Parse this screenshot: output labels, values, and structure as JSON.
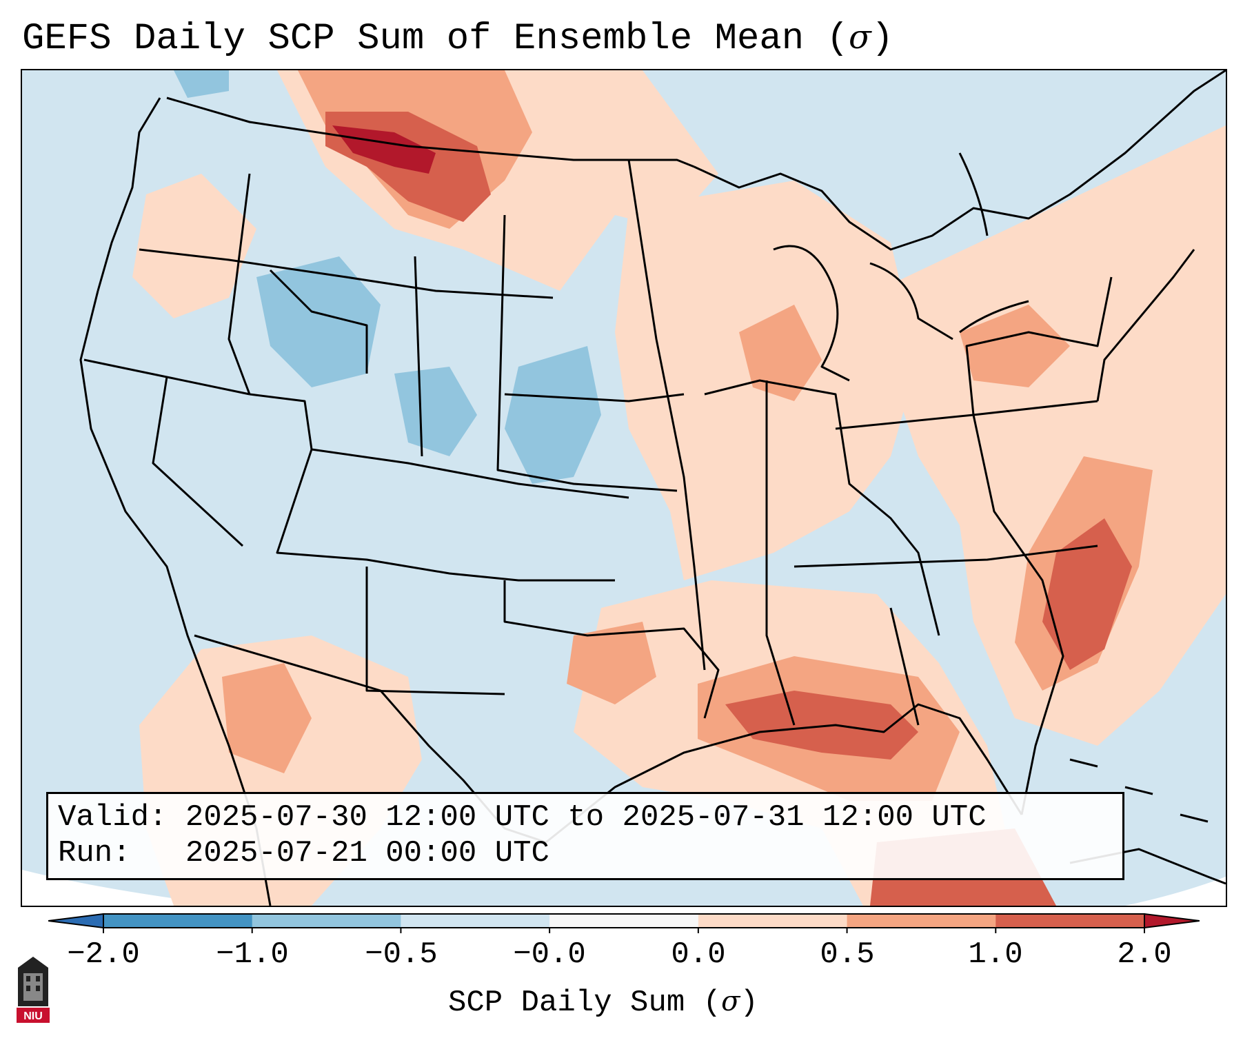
{
  "title": {
    "text": "GEFS Daily SCP Sum of Ensemble Mean (",
    "symbol": "σ",
    "close": ")"
  },
  "info": {
    "valid": "Valid: 2025-07-30 12:00 UTC to 2025-07-31 12:00 UTC",
    "run": "Run:   2025-07-21 00:00 UTC"
  },
  "colorbar": {
    "label": "SCP Daily Sum (",
    "symbol": "σ",
    "close": ")",
    "ticks": [
      "−2.0",
      "−1.0",
      "−0.5",
      "−0.0",
      "0.0",
      "0.5",
      "1.0",
      "2.0"
    ],
    "colors": [
      "#2b6cb3",
      "#4393c3",
      "#92c5de",
      "#d1e5f0",
      "#f7f7f7",
      "#fddbc7",
      "#f4a582",
      "#d6604d",
      "#b2182b"
    ]
  },
  "map": {
    "background_color": "#d1e5f0",
    "region": "CONUS",
    "anomaly_areas": [
      {
        "region": "Northern Rockies / Montana",
        "level": "1.0 to 2.0"
      },
      {
        "region": "Gulf Coast / Florida Panhandle",
        "level": "0.5 to 1.0"
      },
      {
        "region": "Atlantic off Carolinas",
        "level": "0.5 to 1.0"
      },
      {
        "region": "Central Rockies / Colorado",
        "level": "-1.0 to -0.5"
      },
      {
        "region": "Nebraska / Kansas",
        "level": "-1.0 to -0.5"
      }
    ]
  },
  "logo": {
    "text": "NIU"
  }
}
